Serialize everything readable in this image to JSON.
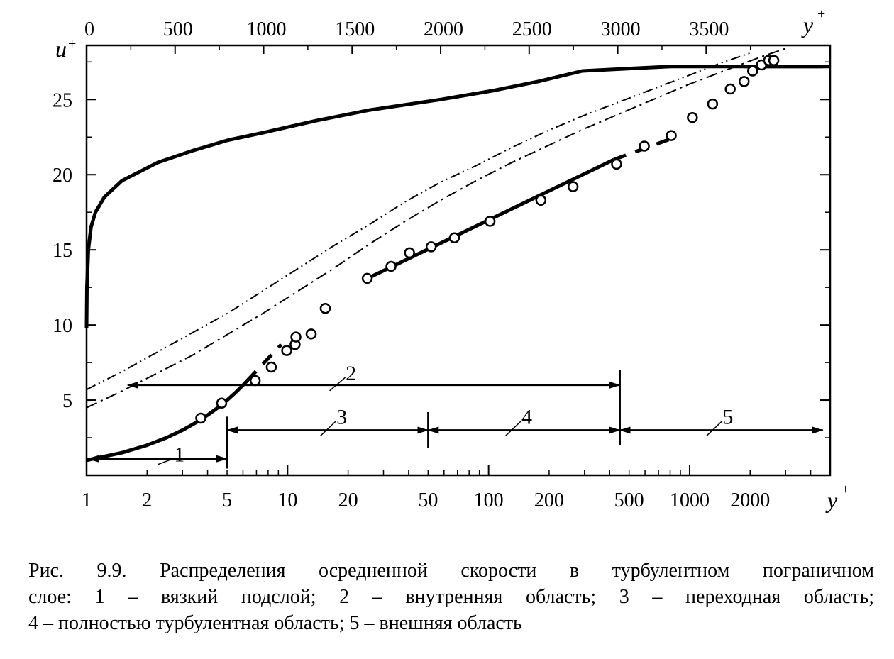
{
  "caption": {
    "line1": "Рис. 9.9. Распределения осредненной скорости в турбулентном пограничном",
    "line2": "слое: 1 – вязкий подслой; 2 – внутренняя область; 3 – переходная область;",
    "line3": "4 – полностью турбулентная область; 5 – внешняя область"
  },
  "chart_data": {
    "type": "line",
    "title": "",
    "ylabel": "u",
    "ylabel_sup": "+",
    "top_xlabel": "y",
    "top_xlabel_sup": "+",
    "bottom_xlabel": "y",
    "bottom_xlabel_sup": "+",
    "top_axis": {
      "scale": "linear",
      "range": [
        0,
        4200
      ],
      "ticks": [
        0,
        500,
        1000,
        1500,
        2000,
        2500,
        3000,
        3500
      ]
    },
    "bottom_axis": {
      "scale": "log",
      "range": [
        1,
        5000
      ],
      "ticks": [
        1,
        2,
        5,
        10,
        20,
        50,
        100,
        200,
        500,
        1000,
        2000
      ]
    },
    "y_axis": {
      "range": [
        0,
        28.6
      ],
      "ticks": [
        5,
        10,
        15,
        20,
        25
      ]
    },
    "grid": false,
    "series": [
      {
        "kind": "linear-profile",
        "axis": "top",
        "style": "solid-thick",
        "x": [
          0,
          2,
          10,
          25,
          50,
          100,
          200,
          400,
          600,
          800,
          1000,
          1300,
          1600,
          2000,
          2300,
          2550,
          2800,
          3300,
          4200
        ],
        "y": [
          9.8,
          12.5,
          15.0,
          16.5,
          17.5,
          18.5,
          19.6,
          20.8,
          21.6,
          22.3,
          22.8,
          23.6,
          24.3,
          25.0,
          25.6,
          26.2,
          26.9,
          27.2,
          27.2
        ]
      },
      {
        "kind": "log-law",
        "axis": "bottom",
        "style": "solid-thick",
        "x": [
          25,
          420
        ],
        "y": [
          13.1,
          21.0
        ]
      },
      {
        "kind": "log-law-dashed",
        "axis": "bottom",
        "style": "dashed-thick",
        "x": [
          420,
          850
        ],
        "y": [
          21.0,
          22.5
        ]
      },
      {
        "kind": "wake",
        "axis": "bottom",
        "style": "solid-thick",
        "x": [
          1860,
          4600
        ],
        "y": [
          27.2,
          27.2
        ]
      },
      {
        "kind": "viscous-sublayer",
        "axis": "bottom",
        "style": "solid-thick",
        "x": [
          1,
          1.5,
          2,
          2.5,
          3,
          3.5,
          4,
          4.5,
          5,
          5.5,
          6,
          6.3
        ],
        "y": [
          1.0,
          1.5,
          2.0,
          2.5,
          3.0,
          3.5,
          4.0,
          4.5,
          5.0,
          5.5,
          6.0,
          6.3
        ]
      },
      {
        "kind": "sublayer-dashed",
        "axis": "bottom",
        "style": "dashed-thick",
        "x": [
          6.3,
          9.3
        ],
        "y": [
          6.3,
          8.7
        ]
      },
      {
        "kind": "dash-dot-dot",
        "axis": "top",
        "style": "dash-dot-dot",
        "x": [
          0,
          200,
          400,
          600,
          800,
          1000,
          1200,
          1400,
          1600,
          1800,
          2000,
          2200,
          2400,
          2600,
          2800,
          3000,
          3200,
          3400,
          3600,
          3750
        ],
        "y": [
          5.7,
          6.9,
          8.2,
          9.5,
          10.8,
          12.3,
          13.8,
          15.3,
          16.7,
          18.2,
          19.5,
          20.6,
          21.8,
          22.9,
          23.9,
          24.8,
          25.7,
          26.6,
          27.5,
          28.1
        ]
      },
      {
        "kind": "dash-dot",
        "axis": "top",
        "style": "dash-dot",
        "x": [
          0,
          200,
          400,
          600,
          800,
          1000,
          1200,
          1400,
          1600,
          1800,
          2000,
          2200,
          2400,
          2600,
          2800,
          3000,
          3200,
          3400,
          3600,
          3800,
          3950
        ],
        "y": [
          4.5,
          5.6,
          6.8,
          8.0,
          9.4,
          10.8,
          12.3,
          13.8,
          15.4,
          16.9,
          18.3,
          19.6,
          20.8,
          21.9,
          23.0,
          24.0,
          25.0,
          26.0,
          26.9,
          27.8,
          28.4
        ]
      },
      {
        "kind": "markers",
        "axis": "bottom",
        "style": "open-circles",
        "x": [
          3.7,
          4.7,
          6.9,
          8.3,
          9.9,
          10.9,
          11.0,
          13.1,
          15.4,
          24.9,
          32.7,
          40.4,
          51.8,
          67.6,
          101.6,
          182,
          263,
          433,
          595,
          810,
          1032,
          1301,
          1592,
          1866,
          2057,
          2277,
          2472,
          2622
        ],
        "y": [
          3.8,
          4.8,
          6.3,
          7.2,
          8.3,
          8.7,
          9.2,
          9.4,
          11.1,
          13.1,
          13.9,
          14.8,
          15.2,
          15.8,
          16.9,
          18.3,
          19.2,
          20.7,
          21.9,
          22.6,
          23.8,
          24.7,
          25.7,
          26.2,
          26.9,
          27.3,
          27.6,
          27.6
        ]
      }
    ],
    "regions": [
      {
        "id": "1",
        "label": "1",
        "x_from": 1,
        "x_to": 5
      },
      {
        "id": "2",
        "label": "2",
        "x_from": 1.6,
        "x_to": 450
      },
      {
        "id": "3",
        "label": "3",
        "x_from": 5,
        "x_to": 50
      },
      {
        "id": "4",
        "label": "4",
        "x_from": 50,
        "x_to": 450
      },
      {
        "id": "5",
        "label": "5",
        "x_from": 450,
        "x_to": 4600
      }
    ]
  }
}
